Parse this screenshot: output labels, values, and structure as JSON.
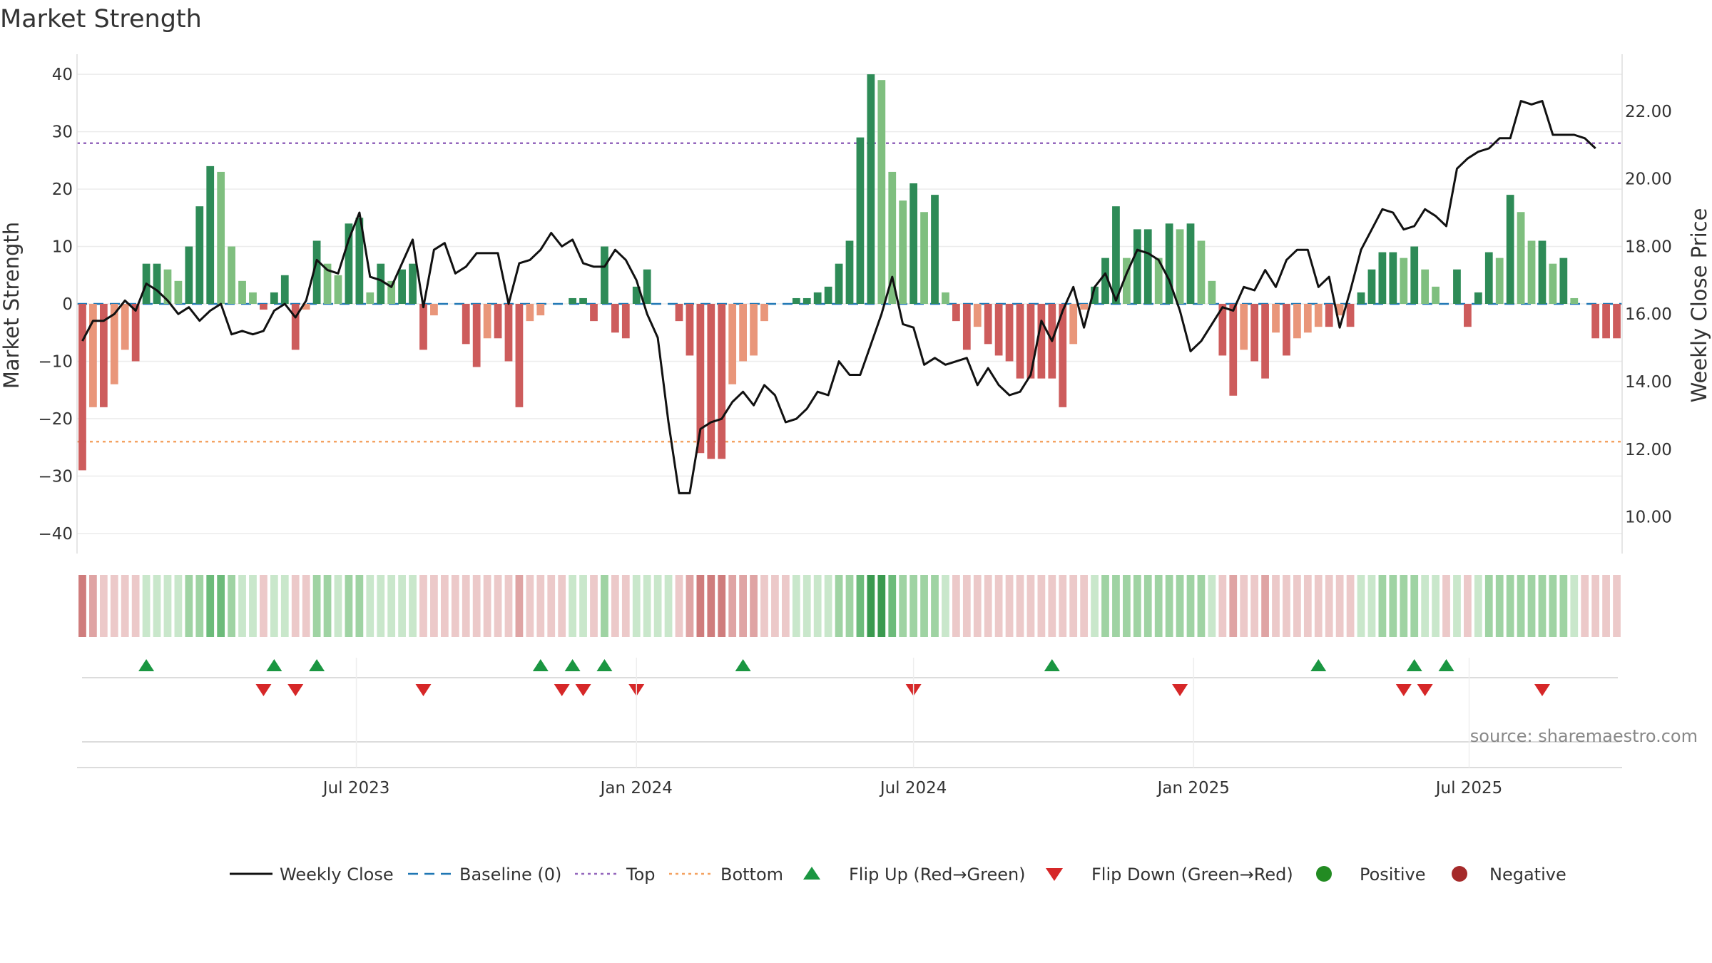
{
  "chart_data": {
    "type": "bar",
    "title": "Market Strength",
    "ylabel": "Market Strength",
    "y2label": "Weekly Close Price",
    "source": "source: sharemaestro.com",
    "ylim": [
      -43,
      43
    ],
    "y2lim": [
      9.0,
      23.6
    ],
    "yticks": [
      40,
      30,
      20,
      10,
      0,
      -10,
      -20,
      -30,
      -40
    ],
    "ytick_labels": [
      "40",
      "30",
      "20",
      "10",
      "0",
      "−10",
      "−20",
      "−30",
      "−40"
    ],
    "y2ticks": [
      22,
      20,
      18,
      16,
      14,
      12,
      10
    ],
    "y2tick_labels": [
      "22.00",
      "20.00",
      "18.00",
      "16.00",
      "14.00",
      "12.00",
      "10.00"
    ],
    "top_line": 28,
    "bottom_line": -24,
    "x_start": "2023-01-02",
    "x_step_days": 7,
    "xticks": [
      {
        "date": "2023-07-01",
        "label": "Jul 2023"
      },
      {
        "date": "2024-01-01",
        "label": "Jan 2024"
      },
      {
        "date": "2024-07-01",
        "label": "Jul 2024"
      },
      {
        "date": "2025-01-01",
        "label": "Jan 2025"
      },
      {
        "date": "2025-07-01",
        "label": "Jul 2025"
      }
    ],
    "strength": [
      -29,
      -18,
      -18,
      -14,
      -8,
      -10,
      7,
      7,
      6,
      4,
      10,
      17,
      24,
      23,
      10,
      4,
      2,
      -1,
      2,
      5,
      -8,
      -1,
      11,
      7,
      5,
      14,
      15,
      2,
      7,
      4,
      6,
      7,
      -8,
      -2,
      0,
      0,
      -7,
      -11,
      -6,
      -6,
      -10,
      -18,
      -3,
      -2,
      0,
      0,
      1,
      1,
      -3,
      10,
      -5,
      -6,
      3,
      6,
      0,
      0,
      -3,
      -9,
      -26,
      -27,
      -27,
      -14,
      -10,
      -9,
      -3,
      0,
      0,
      1,
      1,
      2,
      3,
      7,
      11,
      29,
      40,
      39,
      23,
      18,
      21,
      16,
      19,
      2,
      -3,
      -8,
      -4,
      -7,
      -9,
      -10,
      -13,
      -13,
      -13,
      -13,
      -18,
      -7,
      -1,
      3,
      8,
      17,
      8,
      13,
      13,
      8,
      14,
      13,
      14,
      11,
      4,
      -9,
      -16,
      -8,
      -10,
      -13,
      -5,
      -9,
      -6,
      -5,
      -4,
      -4,
      -2,
      -4,
      2,
      6,
      9,
      9,
      8,
      10,
      6,
      3,
      0,
      6,
      -4,
      2,
      9,
      8,
      19,
      16,
      11,
      11,
      7,
      8,
      1,
      0,
      -6,
      -6,
      -6
    ],
    "price": [
      15.2,
      15.8,
      15.8,
      16.0,
      16.4,
      16.1,
      16.9,
      16.7,
      16.4,
      16.0,
      16.2,
      15.8,
      16.1,
      16.3,
      15.4,
      15.5,
      15.4,
      15.5,
      16.1,
      16.3,
      15.9,
      16.4,
      17.6,
      17.3,
      17.2,
      18.2,
      19.0,
      17.1,
      17.0,
      16.8,
      17.5,
      18.2,
      16.2,
      17.9,
      18.1,
      17.2,
      17.4,
      17.8,
      17.8,
      17.8,
      16.3,
      17.5,
      17.6,
      17.9,
      18.4,
      18.0,
      18.2,
      17.5,
      17.4,
      17.4,
      17.9,
      17.6,
      17.0,
      16.0,
      15.3,
      12.8,
      10.7,
      10.7,
      12.6,
      12.8,
      12.9,
      13.4,
      13.7,
      13.3,
      13.9,
      13.6,
      12.8,
      12.9,
      13.2,
      13.7,
      13.6,
      14.6,
      14.2,
      14.2,
      15.1,
      16.0,
      17.1,
      15.7,
      15.6,
      14.5,
      14.7,
      14.5,
      14.6,
      14.7,
      13.9,
      14.4,
      13.9,
      13.6,
      13.7,
      14.2,
      15.8,
      15.2,
      16.1,
      16.8,
      15.6,
      16.8,
      17.2,
      16.4,
      17.2,
      17.9,
      17.8,
      17.6,
      17.0,
      16.1,
      14.9,
      15.2,
      15.7,
      16.2,
      16.1,
      16.8,
      16.7,
      17.3,
      16.8,
      17.6,
      17.9,
      17.9,
      16.8,
      17.1,
      15.6,
      16.7,
      17.9,
      18.5,
      19.1,
      19.0,
      18.5,
      18.6,
      19.1,
      18.9,
      18.6,
      20.3,
      20.6,
      20.8,
      20.9,
      21.2,
      21.2,
      22.3,
      22.2,
      22.3,
      21.3,
      21.3,
      21.3,
      21.2,
      20.9
    ],
    "heat_values": [
      -3,
      -2,
      -1,
      -1,
      -1,
      -1,
      1,
      1,
      1,
      1,
      2,
      2,
      3,
      3,
      2,
      1,
      1,
      -1,
      1,
      1,
      -1,
      -1,
      2,
      2,
      1,
      2,
      2,
      1,
      1,
      1,
      1,
      1,
      -1,
      -1,
      -1,
      -1,
      -1,
      -1,
      -1,
      -1,
      -1,
      -2,
      -1,
      -1,
      -1,
      -1,
      1,
      1,
      -1,
      2,
      -1,
      -1,
      1,
      1,
      1,
      1,
      -1,
      -2,
      -3,
      -3,
      -3,
      -2,
      -2,
      -2,
      -1,
      -1,
      -1,
      1,
      1,
      1,
      1,
      2,
      2,
      3,
      4,
      4,
      3,
      2,
      2,
      2,
      2,
      1,
      -1,
      -1,
      -1,
      -1,
      -1,
      -1,
      -1,
      -1,
      -1,
      -1,
      -1,
      -1,
      -1,
      1,
      2,
      2,
      2,
      2,
      2,
      2,
      2,
      2,
      2,
      2,
      1,
      -1,
      -2,
      -1,
      -1,
      -2,
      -1,
      -1,
      -1,
      -1,
      -1,
      -1,
      -1,
      -1,
      1,
      1,
      2,
      2,
      2,
      2,
      1,
      1,
      -1,
      1,
      -1,
      1,
      2,
      2,
      2,
      2,
      2,
      2,
      2,
      2,
      1,
      -1,
      -1,
      -1,
      -1
    ],
    "flips_up_idx": [
      6,
      18,
      22,
      43,
      46,
      49,
      62,
      91,
      116,
      125,
      128
    ],
    "flips_down_idx": [
      17,
      20,
      32,
      45,
      47,
      52,
      78,
      103,
      124,
      126,
      137
    ],
    "legend": [
      {
        "key": "weekly-close",
        "label": "Weekly Close"
      },
      {
        "key": "baseline",
        "label": "Baseline (0)"
      },
      {
        "key": "top",
        "label": "Top"
      },
      {
        "key": "bottom",
        "label": "Bottom"
      },
      {
        "key": "flip-up",
        "label": "Flip Up (Red→Green)"
      },
      {
        "key": "flip-down",
        "label": "Flip Down (Green→Red)"
      },
      {
        "key": "positive",
        "label": "Positive"
      },
      {
        "key": "negative",
        "label": "Negative"
      }
    ]
  },
  "colors": {
    "pos_strong": "#2e8b57",
    "pos_weak": "#7fbf7f",
    "neg_strong": "#cd5c5c",
    "neg_weak": "#e9967a",
    "price_line": "#111111",
    "baseline": "#1f77b4",
    "top": "#9467bd",
    "bottom": "#f4a261",
    "flip_up": "#1a9641",
    "flip_down": "#d62728",
    "positive_dot": "#228b22",
    "negative_dot": "#a52a2a"
  }
}
